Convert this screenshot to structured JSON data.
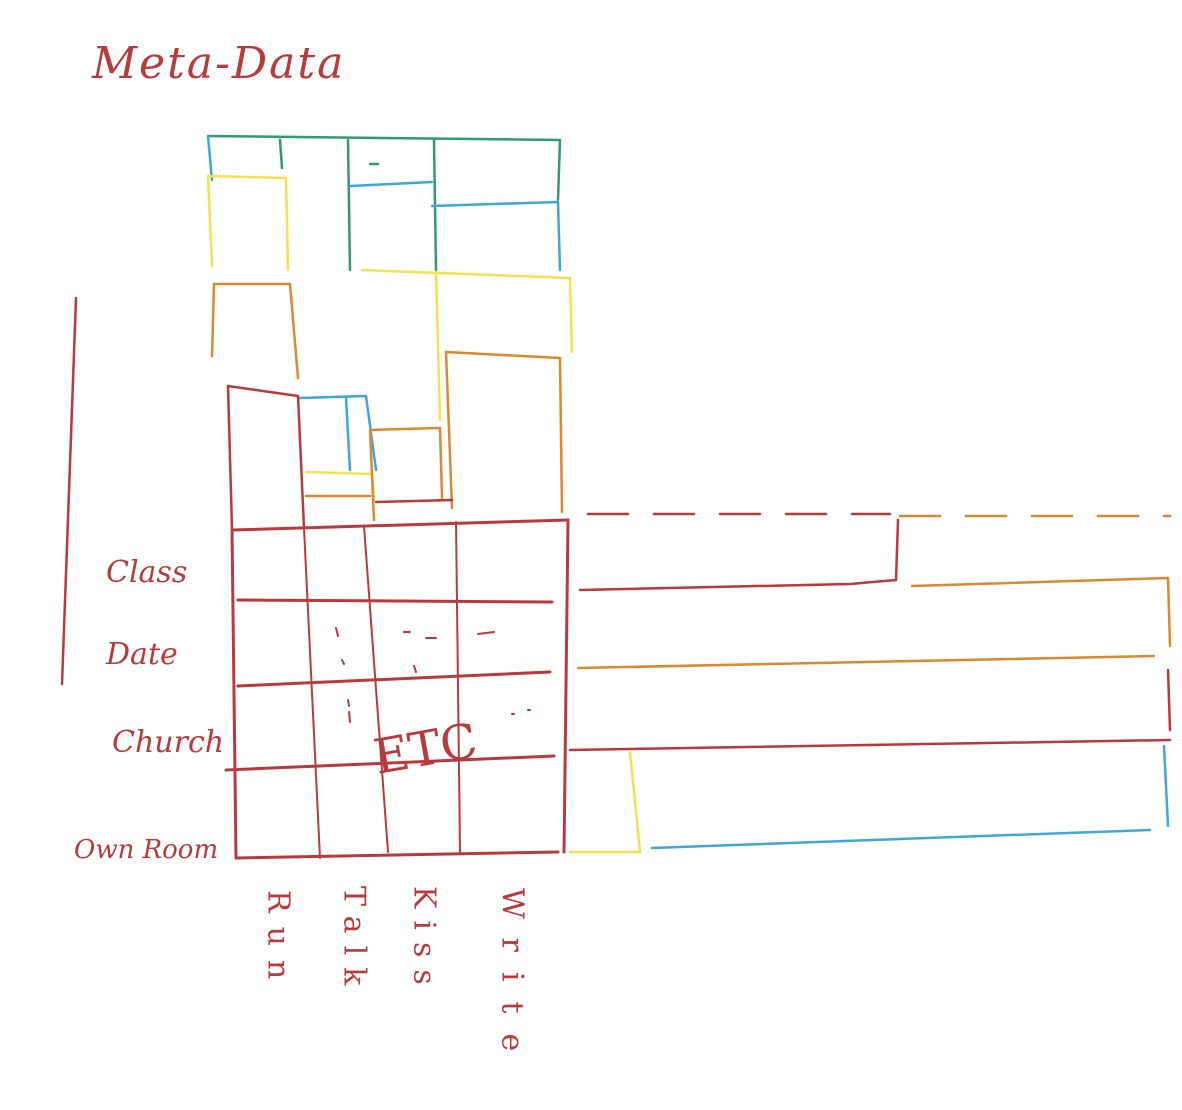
{
  "title": "Meta-Data",
  "row_labels": [
    "Class",
    "Date",
    "Church",
    "Own Room"
  ],
  "column_labels": [
    "Run",
    "Talk",
    "Kiss",
    "Write"
  ],
  "grid_annotation": "ETC",
  "palette": {
    "red": "#b83a3f",
    "orange": "#d9892f",
    "yellow": "#f3e34f",
    "blue": "#3ea9d8",
    "green": "#2f9a76"
  }
}
